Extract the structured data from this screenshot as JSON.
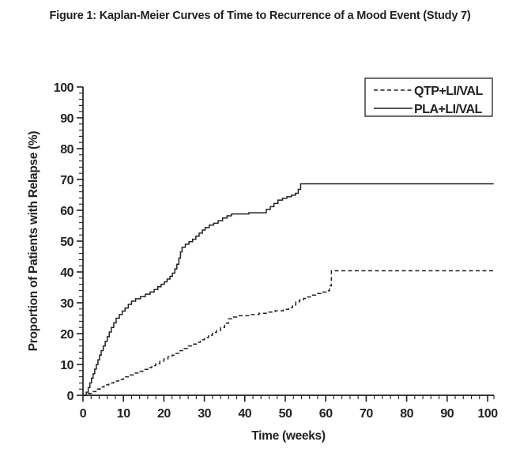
{
  "figure": {
    "title": "Figure 1: Kaplan-Meier Curves of Time to Recurrence of a Mood Event (Study 7)"
  },
  "colors": {
    "line": "#231f20",
    "text": "#231f20",
    "background": "#ffffff"
  },
  "chart_data": {
    "type": "line",
    "subtype": "kaplan-meier-step",
    "title": "Figure 1: Kaplan-Meier Curves of Time to Recurrence of a Mood Event (Study 7)",
    "xlabel": "Time (weeks)",
    "ylabel": "Proportion of Patients with Relapse (%)",
    "xlim": [
      0,
      101.5
    ],
    "ylim": [
      0,
      100
    ],
    "x_ticks": [
      0,
      10,
      20,
      30,
      40,
      50,
      60,
      70,
      80,
      90,
      100
    ],
    "y_ticks": [
      0,
      10,
      20,
      30,
      40,
      50,
      60,
      70,
      80,
      90,
      100
    ],
    "minor_tick_step": 2,
    "grid": false,
    "legend_position": "top-right",
    "x_end": 101.5,
    "series": [
      {
        "name": "QTP+LI/VAL",
        "line_style": "dashed",
        "color": "#231f20",
        "steps": [
          [
            0,
            0
          ],
          [
            1.2,
            0.6
          ],
          [
            2.2,
            1.2
          ],
          [
            3.2,
            2
          ],
          [
            4.2,
            2.7
          ],
          [
            5.2,
            3.4
          ],
          [
            6.4,
            4
          ],
          [
            7.6,
            4.6
          ],
          [
            8.8,
            5.2
          ],
          [
            10,
            6
          ],
          [
            11.2,
            6.6
          ],
          [
            12.4,
            7.2
          ],
          [
            13.6,
            7.8
          ],
          [
            14.8,
            8.4
          ],
          [
            16,
            9
          ],
          [
            17,
            9.6
          ],
          [
            18,
            10.3
          ],
          [
            19,
            11
          ],
          [
            20,
            11.8
          ],
          [
            21,
            12.5
          ],
          [
            22,
            13
          ],
          [
            23,
            13.6
          ],
          [
            24,
            14.5
          ],
          [
            25,
            15.2
          ],
          [
            26,
            16
          ],
          [
            27,
            16.6
          ],
          [
            28,
            17.2
          ],
          [
            29,
            18
          ],
          [
            30,
            18.7
          ],
          [
            31,
            19.5
          ],
          [
            32,
            20.4
          ],
          [
            33,
            21
          ],
          [
            34,
            22
          ],
          [
            35,
            23.4
          ],
          [
            36,
            24.8
          ],
          [
            37,
            25.4
          ],
          [
            38,
            25.8
          ],
          [
            41.2,
            26.2
          ],
          [
            43.5,
            26.6
          ],
          [
            45.5,
            27
          ],
          [
            47.5,
            27.4
          ],
          [
            49.5,
            27.9
          ],
          [
            50.8,
            28.5
          ],
          [
            51.8,
            29.3
          ],
          [
            52.6,
            30.3
          ],
          [
            53.5,
            30.9
          ],
          [
            54.5,
            31.4
          ],
          [
            55.5,
            31.9
          ],
          [
            56.4,
            32.5
          ],
          [
            57.5,
            33
          ],
          [
            58.8,
            33.5
          ],
          [
            60.1,
            33.9
          ],
          [
            60.9,
            35.5
          ],
          [
            61.4,
            40.4
          ]
        ]
      },
      {
        "name": "PLA+LI/VAL",
        "line_style": "solid",
        "color": "#231f20",
        "steps": [
          [
            0,
            0
          ],
          [
            0.8,
            1
          ],
          [
            1.3,
            2.5
          ],
          [
            1.7,
            4
          ],
          [
            2.1,
            5.5
          ],
          [
            2.5,
            7
          ],
          [
            2.9,
            8.5
          ],
          [
            3.3,
            10
          ],
          [
            3.7,
            11.5
          ],
          [
            4.1,
            13
          ],
          [
            4.5,
            14.5
          ],
          [
            5,
            16
          ],
          [
            5.5,
            17.5
          ],
          [
            6,
            19
          ],
          [
            6.5,
            20.5
          ],
          [
            7,
            22
          ],
          [
            7.6,
            23.5
          ],
          [
            8.2,
            25
          ],
          [
            9,
            26.2
          ],
          [
            9.7,
            27.3
          ],
          [
            10.4,
            28.3
          ],
          [
            11.2,
            29.5
          ],
          [
            12,
            30.5
          ],
          [
            13,
            31.3
          ],
          [
            14.2,
            32
          ],
          [
            15.4,
            32.8
          ],
          [
            16.6,
            33.5
          ],
          [
            17.6,
            34.3
          ],
          [
            18.5,
            35.2
          ],
          [
            19.3,
            36
          ],
          [
            20.1,
            36.8
          ],
          [
            20.8,
            37.7
          ],
          [
            21.5,
            38.6
          ],
          [
            22.1,
            39.6
          ],
          [
            22.7,
            41
          ],
          [
            23.2,
            42.5
          ],
          [
            23.7,
            44.5
          ],
          [
            24.1,
            46.5
          ],
          [
            24.5,
            48
          ],
          [
            25.3,
            49
          ],
          [
            26.2,
            49.8
          ],
          [
            27.1,
            50.6
          ],
          [
            27.9,
            51.6
          ],
          [
            28.7,
            52.6
          ],
          [
            29.5,
            53.6
          ],
          [
            30.2,
            54.4
          ],
          [
            31.2,
            55.2
          ],
          [
            32.3,
            55.8
          ],
          [
            33.4,
            56.6
          ],
          [
            34.5,
            57.5
          ],
          [
            35.6,
            58.2
          ],
          [
            36.7,
            58.8
          ],
          [
            41,
            59.2
          ],
          [
            45.3,
            60.3
          ],
          [
            46.3,
            61.2
          ],
          [
            47.2,
            62.2
          ],
          [
            48.2,
            63.3
          ],
          [
            49.3,
            63.9
          ],
          [
            50.4,
            64.4
          ],
          [
            51.5,
            64.9
          ],
          [
            52.5,
            65.5
          ],
          [
            53.2,
            66.8
          ],
          [
            53.8,
            68.6
          ]
        ]
      }
    ]
  }
}
